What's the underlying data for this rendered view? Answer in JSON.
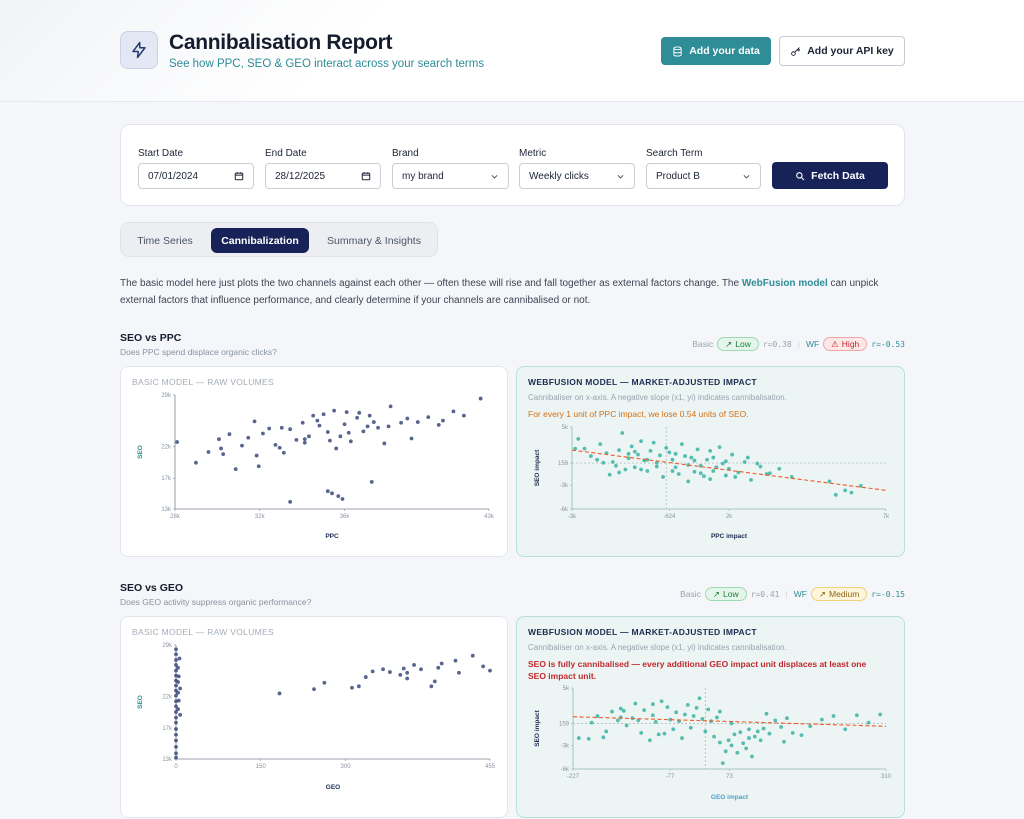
{
  "header": {
    "title": "Cannibalisation Report",
    "subtitle": "See how PPC, SEO & GEO interact across your search terms",
    "add_data_label": "Add your data",
    "api_key_label": "Add your API key"
  },
  "filters": {
    "start_date": {
      "label": "Start Date",
      "value": "07/01/2024"
    },
    "end_date": {
      "label": "End Date",
      "value": "28/12/2025"
    },
    "brand": {
      "label": "Brand",
      "value": "my brand"
    },
    "metric": {
      "label": "Metric",
      "value": "Weekly clicks"
    },
    "search_term": {
      "label": "Search Term",
      "value": "Product B"
    },
    "fetch_label": "Fetch Data"
  },
  "tabs": [
    {
      "label": "Time Series",
      "active": false
    },
    {
      "label": "Cannibalization",
      "active": true
    },
    {
      "label": "Summary & Insights",
      "active": false
    }
  ],
  "intro": {
    "before": "The basic model here just plots the two channels against each other — often these will rise and fall together as external factors change. The ",
    "link": "WebFusion model",
    "after": " can unpick external factors that influence performance, and clearly determine if your channels are cannibalised or not."
  },
  "sections": [
    {
      "title": "SEO vs PPC",
      "subtitle": "Does PPC spend displace organic clicks?",
      "basic_tag": "Basic",
      "basic_badge": "Low",
      "basic_r": "r=0.38",
      "wf_tag": "WF",
      "wf_badge": "High",
      "wf_r": "r=-0.53",
      "basic_card_title": "BASIC MODEL — RAW VOLUMES",
      "wf_card_title": "WEBFUSION MODEL — MARKET-ADJUSTED IMPACT",
      "wf_card_sub": "Cannibaliser on x-axis. A negative slope (x1, yi) indicates cannibalisation.",
      "wf_note": "For every 1 unit of PPC impact, we lose 0.54 units of SEO."
    },
    {
      "title": "SEO vs GEO",
      "subtitle": "Does GEO activity suppress organic performance?",
      "basic_tag": "Basic",
      "basic_badge": "Low",
      "basic_r": "r=0.41",
      "wf_tag": "WF",
      "wf_badge": "Medium",
      "wf_r": "r=-0.15",
      "basic_card_title": "BASIC MODEL — RAW VOLUMES",
      "wf_card_title": "WEBFUSION MODEL — MARKET-ADJUSTED IMPACT",
      "wf_card_sub": "Cannibaliser on x-axis. A negative slope (x1, yi) indicates cannibalisation.",
      "wf_note": "SEO is fully cannibalised — every additional GEO impact unit displaces at least one SEO impact unit."
    }
  ],
  "colors": {
    "navy": "#172258",
    "teal": "#2e8d96",
    "basic_point": "#3b4a7a",
    "wf_point": "#3bb3a3",
    "trend": "#ef5a2a"
  },
  "chart_data": [
    {
      "type": "scatter",
      "title": "BASIC MODEL — RAW VOLUMES",
      "xlabel": "PPC",
      "ylabel": "SEO",
      "x_ticks": [
        "28k",
        "32k",
        "36k",
        "43k"
      ],
      "y_ticks": [
        "13k",
        "17k",
        "22k",
        "29k"
      ],
      "xlim": [
        28000,
        43000
      ],
      "ylim": [
        13000,
        29000
      ],
      "points": [
        [
          29000,
          19500
        ],
        [
          29600,
          21000
        ],
        [
          30100,
          22800
        ],
        [
          30300,
          20700
        ],
        [
          30900,
          18600
        ],
        [
          31200,
          21900
        ],
        [
          31500,
          23000
        ],
        [
          31900,
          20500
        ],
        [
          32200,
          23600
        ],
        [
          32500,
          24300
        ],
        [
          32800,
          22000
        ],
        [
          33200,
          20900
        ],
        [
          33500,
          24200
        ],
        [
          33800,
          22700
        ],
        [
          34100,
          25100
        ],
        [
          34400,
          23200
        ],
        [
          34600,
          26100
        ],
        [
          34900,
          24700
        ],
        [
          35300,
          23800
        ],
        [
          35600,
          26800
        ],
        [
          35700,
          21500
        ],
        [
          36100,
          24900
        ],
        [
          36400,
          22500
        ],
        [
          36700,
          25800
        ],
        [
          37000,
          23900
        ],
        [
          37300,
          26100
        ],
        [
          37700,
          24400
        ],
        [
          38000,
          22200
        ],
        [
          38300,
          27400
        ],
        [
          38800,
          25100
        ],
        [
          39300,
          22900
        ],
        [
          40100,
          25900
        ],
        [
          40600,
          24800
        ],
        [
          41300,
          26700
        ],
        [
          41800,
          26100
        ],
        [
          42600,
          28500
        ],
        [
          30600,
          23500
        ],
        [
          31800,
          25300
        ],
        [
          33100,
          24400
        ],
        [
          34200,
          22300
        ],
        [
          35100,
          26300
        ],
        [
          36200,
          26600
        ],
        [
          37500,
          25200
        ],
        [
          39100,
          25700
        ],
        [
          35300,
          15500
        ],
        [
          35500,
          15200
        ],
        [
          35800,
          14800
        ],
        [
          36000,
          14400
        ],
        [
          37400,
          16800
        ],
        [
          33500,
          14000
        ],
        [
          30200,
          21500
        ],
        [
          32000,
          19000
        ],
        [
          33000,
          21600
        ],
        [
          34800,
          25400
        ],
        [
          35900,
          23200
        ],
        [
          36800,
          26500
        ],
        [
          38200,
          24600
        ],
        [
          39600,
          25200
        ],
        [
          40800,
          25400
        ],
        [
          28100,
          22400
        ],
        [
          34200,
          22800
        ],
        [
          35400,
          22600
        ],
        [
          36300,
          23700
        ],
        [
          37200,
          24600
        ]
      ],
      "series_color": "#3b4a7a"
    },
    {
      "type": "scatter",
      "title": "WEBFUSION MODEL — MARKET-ADJUSTED IMPACT",
      "xlabel": "PPC impact",
      "ylabel": "SEO impact",
      "x_ticks": [
        "-3k",
        "-624",
        "2k",
        "7k"
      ],
      "y_ticks": [
        "-6k",
        "-3k",
        "159",
        "5k"
      ],
      "xlim": [
        -3000,
        7000
      ],
      "ylim": [
        -6000,
        5000
      ],
      "points": [
        [
          -2800,
          3400
        ],
        [
          -2600,
          2100
        ],
        [
          -2400,
          1100
        ],
        [
          -2200,
          600
        ],
        [
          -2100,
          2700
        ],
        [
          -1900,
          1500
        ],
        [
          -1800,
          -1400
        ],
        [
          -1700,
          300
        ],
        [
          -1500,
          1900
        ],
        [
          -1400,
          4200
        ],
        [
          -1300,
          -700
        ],
        [
          -1200,
          800
        ],
        [
          -1100,
          2400
        ],
        [
          -1000,
          -400
        ],
        [
          -900,
          1300
        ],
        [
          -800,
          3100
        ],
        [
          -700,
          500
        ],
        [
          -600,
          -900
        ],
        [
          -500,
          1800
        ],
        [
          -400,
          2900
        ],
        [
          -300,
          200
        ],
        [
          -200,
          1200
        ],
        [
          -100,
          -1700
        ],
        [
          0,
          2200
        ],
        [
          100,
          1600
        ],
        [
          200,
          600
        ],
        [
          300,
          -400
        ],
        [
          400,
          -1300
        ],
        [
          500,
          2700
        ],
        [
          600,
          1100
        ],
        [
          700,
          -2300
        ],
        [
          800,
          900
        ],
        [
          900,
          -1000
        ],
        [
          1000,
          2000
        ],
        [
          1100,
          -200
        ],
        [
          1200,
          -1600
        ],
        [
          1300,
          600
        ],
        [
          1400,
          1800
        ],
        [
          1500,
          -900
        ],
        [
          1600,
          -400
        ],
        [
          1700,
          2300
        ],
        [
          1800,
          100
        ],
        [
          1900,
          -1500
        ],
        [
          2000,
          -600
        ],
        [
          2100,
          1300
        ],
        [
          2300,
          -1100
        ],
        [
          2500,
          300
        ],
        [
          2700,
          -2100
        ],
        [
          3000,
          -300
        ],
        [
          3300,
          -1200
        ],
        [
          3600,
          -600
        ],
        [
          4000,
          -1700
        ],
        [
          5200,
          -2300
        ],
        [
          5700,
          -3500
        ],
        [
          5900,
          -3800
        ],
        [
          6200,
          -2900
        ],
        [
          5400,
          -4100
        ],
        [
          -2900,
          2100
        ],
        [
          -1600,
          -200
        ],
        [
          -800,
          -700
        ],
        [
          200,
          -900
        ],
        [
          900,
          500
        ],
        [
          1500,
          900
        ],
        [
          -2000,
          200
        ],
        [
          -1200,
          1400
        ],
        [
          -600,
          600
        ],
        [
          300,
          1400
        ],
        [
          1100,
          -1200
        ],
        [
          1900,
          400
        ],
        [
          2600,
          900
        ],
        [
          -300,
          -300
        ],
        [
          -1500,
          -1100
        ],
        [
          -1000,
          1700
        ],
        [
          700,
          -100
        ],
        [
          1400,
          -2000
        ],
        [
          2200,
          -1700
        ],
        [
          2900,
          100
        ],
        [
          3200,
          -1300
        ]
      ],
      "trend": {
        "x": [
          -3000,
          7000
        ],
        "y": [
          1900,
          -3500
        ]
      },
      "series_color": "#3bb3a3"
    },
    {
      "type": "scatter",
      "title": "BASIC MODEL — RAW VOLUMES",
      "xlabel": "GEO",
      "ylabel": "SEO",
      "x_ticks": [
        "0",
        "150",
        "300",
        "455"
      ],
      "y_ticks": [
        "13k",
        "17k",
        "22k",
        "29k"
      ],
      "xlim": [
        0,
        455
      ],
      "ylim": [
        13000,
        29000
      ],
      "points": [
        [
          0,
          13200
        ],
        [
          0,
          13800
        ],
        [
          0,
          14700
        ],
        [
          0,
          15600
        ],
        [
          0,
          16400
        ],
        [
          0,
          17200
        ],
        [
          0,
          18100
        ],
        [
          0,
          18800
        ],
        [
          0,
          19600
        ],
        [
          0,
          20400
        ],
        [
          0,
          21100
        ],
        [
          0,
          21900
        ],
        [
          0,
          22600
        ],
        [
          0,
          23300
        ],
        [
          0,
          24000
        ],
        [
          0,
          24700
        ],
        [
          0,
          25400
        ],
        [
          0,
          26200
        ],
        [
          0,
          26900
        ],
        [
          0,
          27700
        ],
        [
          0,
          28400
        ],
        [
          3,
          20000
        ],
        [
          3,
          22300
        ],
        [
          3,
          23800
        ],
        [
          3,
          25800
        ],
        [
          4,
          21200
        ],
        [
          4,
          24600
        ],
        [
          5,
          27100
        ],
        [
          6,
          22900
        ],
        [
          6,
          19200
        ],
        [
          150,
          22200
        ],
        [
          200,
          22800
        ],
        [
          215,
          23700
        ],
        [
          255,
          23000
        ],
        [
          265,
          23200
        ],
        [
          275,
          24500
        ],
        [
          285,
          25300
        ],
        [
          300,
          25600
        ],
        [
          310,
          25200
        ],
        [
          325,
          24800
        ],
        [
          330,
          25700
        ],
        [
          335,
          25100
        ],
        [
          345,
          26200
        ],
        [
          355,
          25600
        ],
        [
          375,
          23900
        ],
        [
          380,
          25800
        ],
        [
          385,
          26400
        ],
        [
          405,
          26800
        ],
        [
          410,
          25100
        ],
        [
          430,
          27500
        ],
        [
          445,
          26000
        ],
        [
          455,
          25400
        ],
        [
          335,
          24300
        ],
        [
          370,
          23200
        ]
      ],
      "series_color": "#3b4a7a"
    },
    {
      "type": "scatter",
      "title": "WEBFUSION MODEL — MARKET-ADJUSTED IMPACT",
      "xlabel": "GEO impact",
      "ylabel": "SEO impact",
      "x_ticks": [
        "-227",
        "-77",
        "73",
        "310"
      ],
      "y_ticks": [
        "-6k",
        "-3k",
        "159",
        "5k"
      ],
      "xlim": [
        -227,
        310
      ],
      "ylim": [
        -6000,
        5000
      ],
      "points": [
        [
          -217,
          -1800
        ],
        [
          -200,
          -1900
        ],
        [
          -185,
          1200
        ],
        [
          -175,
          -1700
        ],
        [
          -160,
          1800
        ],
        [
          -150,
          600
        ],
        [
          -140,
          1900
        ],
        [
          -135,
          -100
        ],
        [
          -125,
          900
        ],
        [
          -120,
          2900
        ],
        [
          -110,
          -1100
        ],
        [
          -105,
          2000
        ],
        [
          -95,
          -2100
        ],
        [
          -90,
          1300
        ],
        [
          -85,
          400
        ],
        [
          -75,
          3200
        ],
        [
          -70,
          -1200
        ],
        [
          -65,
          2400
        ],
        [
          -55,
          -600
        ],
        [
          -50,
          1700
        ],
        [
          -45,
          500
        ],
        [
          -40,
          -1800
        ],
        [
          -30,
          2700
        ],
        [
          -25,
          -400
        ],
        [
          -20,
          1200
        ],
        [
          -10,
          3600
        ],
        [
          0,
          -900
        ],
        [
          5,
          2100
        ],
        [
          10,
          500
        ],
        [
          15,
          -1600
        ],
        [
          20,
          1000
        ],
        [
          25,
          -2400
        ],
        [
          30,
          -5200
        ],
        [
          35,
          -3600
        ],
        [
          40,
          -2100
        ],
        [
          45,
          -2800
        ],
        [
          50,
          -1300
        ],
        [
          55,
          -3800
        ],
        [
          60,
          -1000
        ],
        [
          65,
          -2500
        ],
        [
          70,
          -3200
        ],
        [
          75,
          -1800
        ],
        [
          80,
          -4300
        ],
        [
          85,
          -1600
        ],
        [
          90,
          -900
        ],
        [
          95,
          -2100
        ],
        [
          100,
          -500
        ],
        [
          110,
          -1200
        ],
        [
          120,
          600
        ],
        [
          130,
          -300
        ],
        [
          140,
          900
        ],
        [
          150,
          -1100
        ],
        [
          165,
          -1400
        ],
        [
          180,
          -200
        ],
        [
          200,
          700
        ],
        [
          220,
          1200
        ],
        [
          240,
          -600
        ],
        [
          260,
          1300
        ],
        [
          280,
          300
        ],
        [
          300,
          1400
        ],
        [
          -195,
          300
        ],
        [
          -170,
          -900
        ],
        [
          -145,
          1000
        ],
        [
          -115,
          600
        ],
        [
          -80,
          -1300
        ],
        [
          -60,
          700
        ],
        [
          -35,
          1400
        ],
        [
          -5,
          800
        ],
        [
          45,
          200
        ],
        [
          75,
          -600
        ],
        [
          105,
          1500
        ],
        [
          135,
          -2300
        ],
        [
          -145,
          2200
        ],
        [
          -90,
          2800
        ],
        [
          -15,
          2300
        ],
        [
          25,
          1800
        ]
      ],
      "trend": {
        "x": [
          -227,
          310
        ],
        "y": [
          1100,
          -200
        ]
      },
      "series_color": "#3bb3a3"
    }
  ]
}
